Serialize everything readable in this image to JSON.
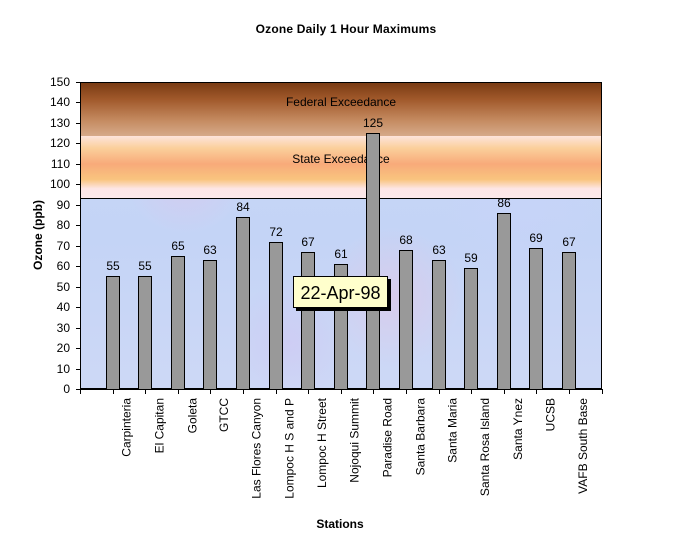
{
  "chart_data": {
    "type": "bar",
    "title": "Ozone Daily 1 Hour Maximums",
    "xlabel": "Stations",
    "ylabel": "Ozone (ppb)",
    "ylim": [
      0,
      150
    ],
    "yticks": [
      0,
      10,
      20,
      30,
      40,
      50,
      60,
      70,
      80,
      90,
      100,
      110,
      120,
      130,
      140,
      150
    ],
    "categories": [
      "Carpinteria",
      "El Capitan",
      "Goleta",
      "GTCC",
      "Las Flores Canyon",
      "Lompoc H S and P",
      "Lompoc H Street",
      "Nojoqui Summit",
      "Paradise Road",
      "Santa Barbara",
      "Santa Maria",
      "Santa Rosa Island",
      "Santa Ynez",
      "UCSB",
      "VAFB South Base"
    ],
    "values": [
      55,
      55,
      65,
      63,
      84,
      72,
      67,
      61,
      125,
      68,
      63,
      59,
      86,
      69,
      67
    ],
    "bar_color": "#999999",
    "grid": false,
    "legend": null,
    "bands": [
      {
        "label": "Federal Exceedance",
        "from": 124,
        "to": 150
      },
      {
        "label": "State Exceedance",
        "from": 94,
        "to": 124
      }
    ],
    "annotations": [
      {
        "text": "22-Apr-98",
        "type": "date-tooltip"
      }
    ]
  },
  "chart": {
    "title": "Ozone Daily 1 Hour Maximums",
    "xlabel": "Stations",
    "ylabel": "Ozone (ppb)",
    "federal_label": "Federal Exceedance",
    "state_label": "State Exceedance",
    "date_label": "22-Apr-98"
  }
}
